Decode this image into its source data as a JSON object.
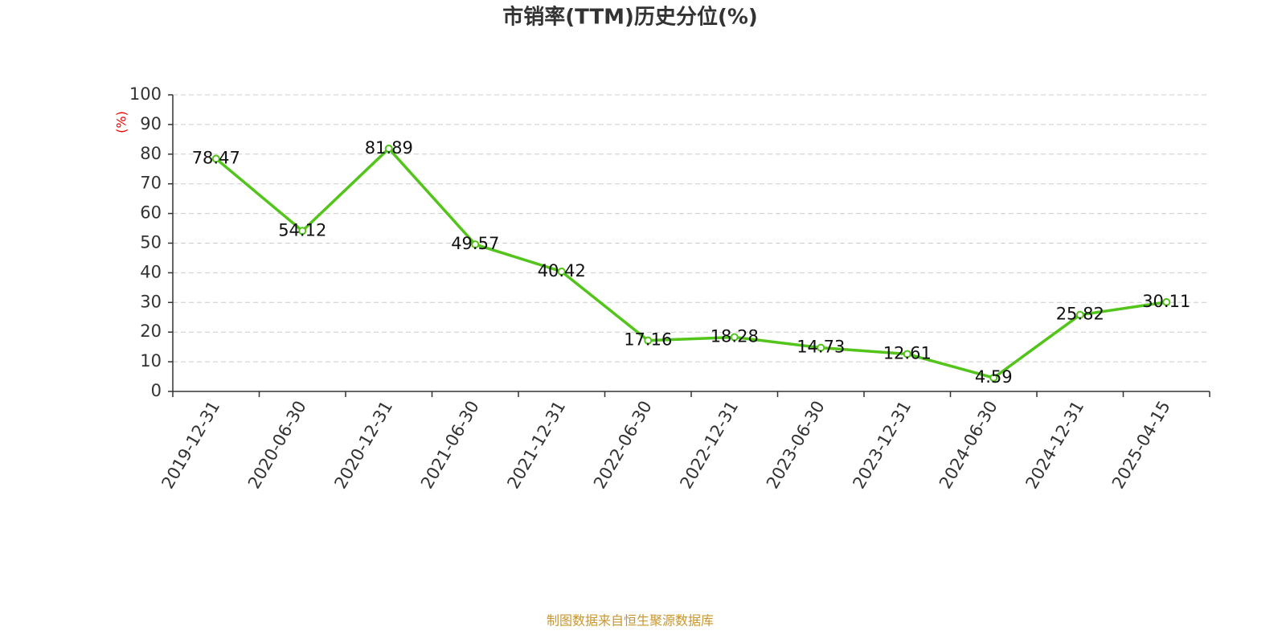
{
  "chart_data": {
    "type": "line",
    "title": "市销率(TTM)历史分位(%)",
    "y_label": "(%)",
    "source": "制图数据来自恒生聚源数据库",
    "categories": [
      "2019-12-31",
      "2020-06-30",
      "2020-12-31",
      "2021-06-30",
      "2021-12-31",
      "2022-06-30",
      "2022-12-31",
      "2023-06-30",
      "2023-12-31",
      "2024-06-30",
      "2024-12-31",
      "2025-04-15"
    ],
    "values": [
      78.47,
      54.12,
      81.89,
      49.57,
      40.42,
      17.16,
      18.28,
      14.73,
      12.61,
      4.59,
      25.82,
      30.11
    ],
    "color": "#52c41a",
    "ylim": [
      0,
      100
    ],
    "yticks": [
      0,
      10,
      20,
      30,
      40,
      50,
      60,
      70,
      80,
      90,
      100
    ],
    "grid": true
  }
}
